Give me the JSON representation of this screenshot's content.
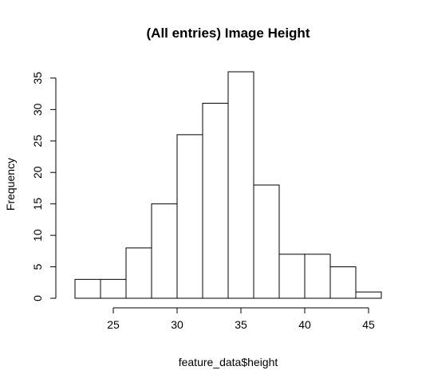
{
  "chart_data": {
    "type": "bar",
    "title": "(All entries) Image Height",
    "xlabel": "feature_data$height",
    "ylabel": "Frequency",
    "bins": [
      {
        "start": 22,
        "end": 24,
        "count": 3
      },
      {
        "start": 24,
        "end": 26,
        "count": 3
      },
      {
        "start": 26,
        "end": 28,
        "count": 8
      },
      {
        "start": 28,
        "end": 30,
        "count": 15
      },
      {
        "start": 30,
        "end": 32,
        "count": 26
      },
      {
        "start": 32,
        "end": 34,
        "count": 31
      },
      {
        "start": 34,
        "end": 36,
        "count": 36
      },
      {
        "start": 36,
        "end": 38,
        "count": 18
      },
      {
        "start": 38,
        "end": 40,
        "count": 7
      },
      {
        "start": 40,
        "end": 42,
        "count": 7
      },
      {
        "start": 42,
        "end": 44,
        "count": 5
      },
      {
        "start": 44,
        "end": 46,
        "count": 1
      }
    ],
    "xlim": [
      22,
      46
    ],
    "ylim": [
      0,
      36
    ],
    "x_ticks": [
      25,
      30,
      35,
      40,
      45
    ],
    "y_ticks": [
      0,
      5,
      10,
      15,
      20,
      25,
      30,
      35
    ],
    "grid": false,
    "legend": "none"
  }
}
